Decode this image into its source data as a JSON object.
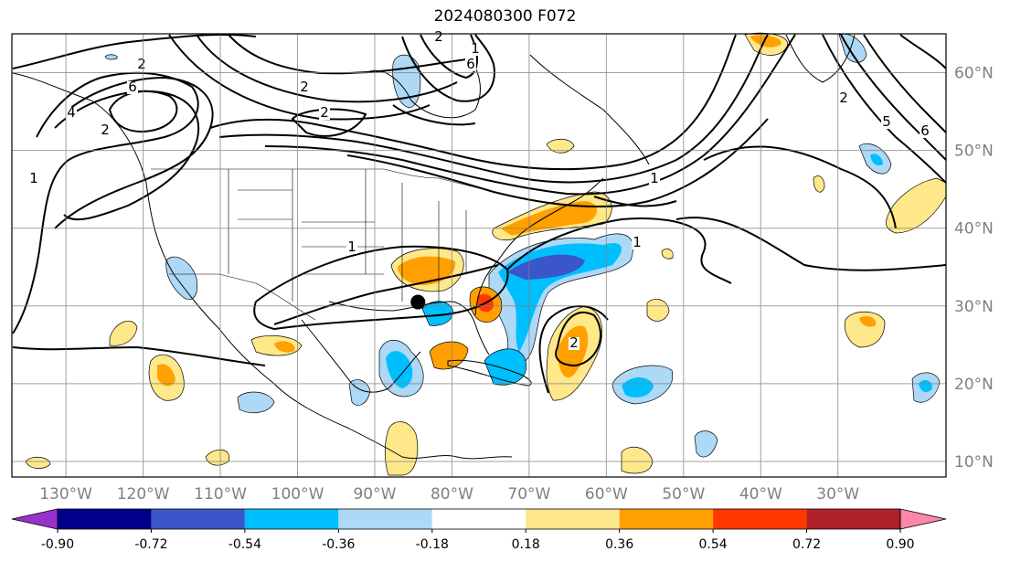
{
  "title": "2024080300 F072",
  "map": {
    "projection": "equirectangular",
    "lon_range": [
      -137,
      -16
    ],
    "lat_range": [
      8,
      65
    ],
    "gridlines": true,
    "lon_ticks": [
      {
        "value": -130,
        "label": "130°W"
      },
      {
        "value": -120,
        "label": "120°W"
      },
      {
        "value": -110,
        "label": "110°W"
      },
      {
        "value": -100,
        "label": "100°W"
      },
      {
        "value": -90,
        "label": "90°W"
      },
      {
        "value": -80,
        "label": "80°W"
      },
      {
        "value": -70,
        "label": "70°W"
      },
      {
        "value": -60,
        "label": "60°W"
      },
      {
        "value": -50,
        "label": "50°W"
      },
      {
        "value": -40,
        "label": "40°W"
      },
      {
        "value": -30,
        "label": "30°W"
      }
    ],
    "lat_ticks": [
      {
        "value": 60,
        "label": "60°N"
      },
      {
        "value": 50,
        "label": "50°N"
      },
      {
        "value": 40,
        "label": "40°N"
      },
      {
        "value": 30,
        "label": "30°N"
      },
      {
        "value": 20,
        "label": "20°N"
      },
      {
        "value": 10,
        "label": "10°N"
      }
    ],
    "marker": {
      "lon": -84.4,
      "lat": 30.5,
      "color": "#000000"
    }
  },
  "colorbar": {
    "levels": [
      "-0.90",
      "-0.72",
      "-0.54",
      "-0.36",
      "-0.18",
      "0.18",
      "0.36",
      "0.54",
      "0.72",
      "0.90"
    ],
    "colors": [
      "#9932cc",
      "#00008b",
      "#3a56c8",
      "#00bfff",
      "#add8f6",
      "#ffffff",
      "#ffe88a",
      "#ffa000",
      "#ff3800",
      "#b0202a",
      "#ff88aa"
    ],
    "extend": "both"
  },
  "contour_labels": [
    "2",
    "6",
    "4",
    "2",
    "1",
    "2",
    "2",
    "6",
    "1",
    "1",
    "1",
    "2",
    "2",
    "5",
    "6",
    "2",
    "1"
  ]
}
